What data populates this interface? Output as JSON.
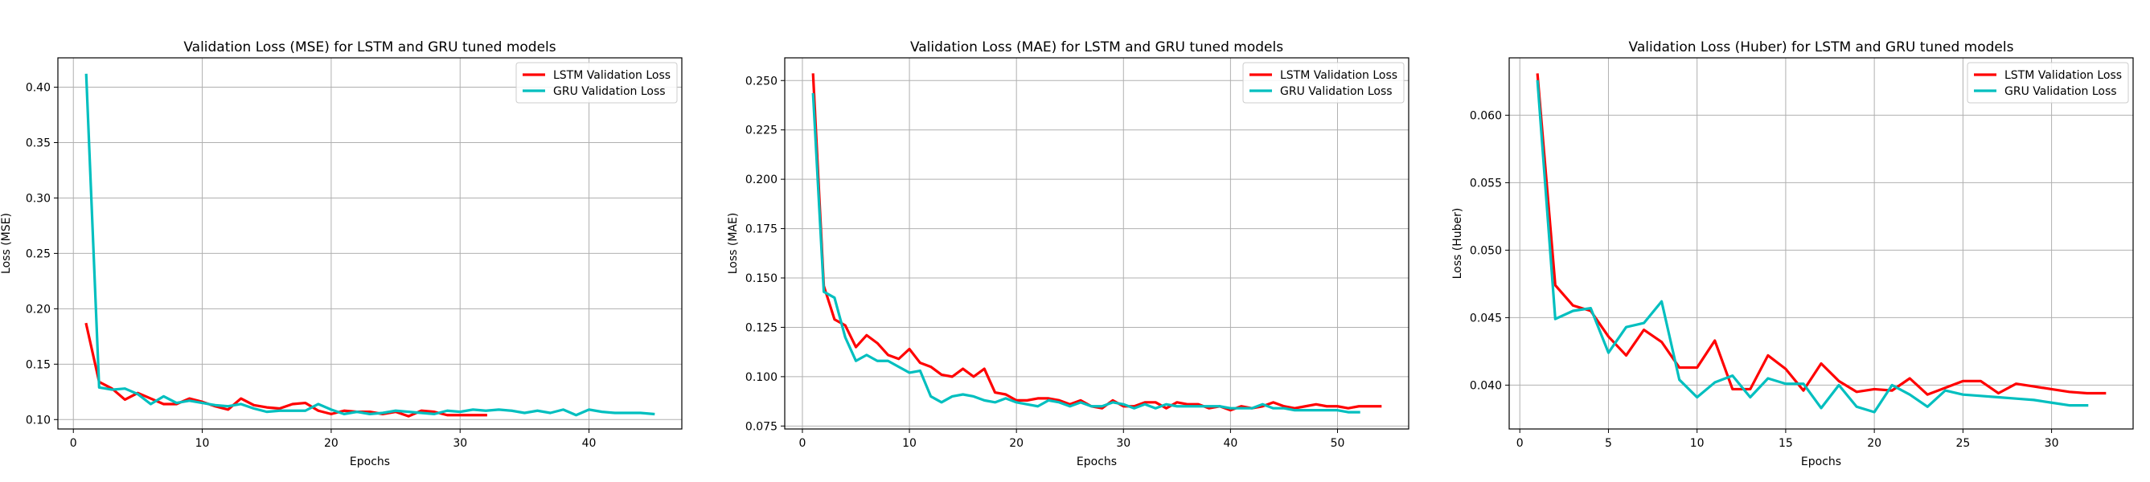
{
  "colors": {
    "lstm": "#ff0000",
    "gru": "#00bfbf",
    "grid": "#b0b0b0",
    "frame": "#000000"
  },
  "chart_data": [
    {
      "type": "line",
      "title": "Validation Loss (MSE) for LSTM and GRU tuned models",
      "xlabel": "Epochs",
      "ylabel": "Loss (MSE)",
      "xlim": [
        -1.2,
        47.2
      ],
      "ylim": [
        0.0915,
        0.4265
      ],
      "xticks": [
        0,
        10,
        20,
        30,
        40
      ],
      "xtick_labels": [
        "0",
        "10",
        "20",
        "30",
        "40"
      ],
      "yticks": [
        0.1,
        0.15,
        0.2,
        0.25,
        0.3,
        0.35,
        0.4
      ],
      "ytick_labels": [
        "0.10",
        "0.15",
        "0.20",
        "0.25",
        "0.30",
        "0.35",
        "0.40"
      ],
      "grid": true,
      "legend_position": "top-right",
      "series": [
        {
          "name": "LSTM Validation Loss",
          "color": "#ff0000",
          "x": [
            1,
            2,
            3,
            4,
            5,
            6,
            7,
            8,
            9,
            10,
            11,
            12,
            13,
            14,
            15,
            16,
            17,
            18,
            19,
            20,
            21,
            22,
            23,
            24,
            25,
            26,
            27,
            28,
            29,
            30,
            31,
            32
          ],
          "y": [
            0.186,
            0.134,
            0.128,
            0.118,
            0.124,
            0.119,
            0.114,
            0.114,
            0.119,
            0.116,
            0.112,
            0.109,
            0.119,
            0.113,
            0.111,
            0.11,
            0.114,
            0.115,
            0.108,
            0.105,
            0.108,
            0.107,
            0.107,
            0.105,
            0.107,
            0.103,
            0.108,
            0.107,
            0.104,
            0.104,
            0.104,
            0.104
          ]
        },
        {
          "name": "GRU Validation Loss",
          "color": "#00bfbf",
          "x": [
            1,
            2,
            3,
            4,
            5,
            6,
            7,
            8,
            9,
            10,
            11,
            12,
            13,
            14,
            15,
            16,
            17,
            18,
            19,
            20,
            21,
            22,
            23,
            24,
            25,
            26,
            27,
            28,
            29,
            30,
            31,
            32,
            33,
            34,
            35,
            36,
            37,
            38,
            39,
            40,
            41,
            42,
            43,
            44,
            45
          ],
          "y": [
            0.411,
            0.129,
            0.127,
            0.128,
            0.123,
            0.114,
            0.121,
            0.115,
            0.117,
            0.115,
            0.113,
            0.112,
            0.114,
            0.11,
            0.107,
            0.108,
            0.108,
            0.108,
            0.114,
            0.109,
            0.105,
            0.107,
            0.105,
            0.106,
            0.108,
            0.107,
            0.106,
            0.105,
            0.108,
            0.107,
            0.109,
            0.108,
            0.109,
            0.108,
            0.106,
            0.108,
            0.106,
            0.109,
            0.104,
            0.109,
            0.107,
            0.106,
            0.106,
            0.106,
            0.105
          ]
        }
      ]
    },
    {
      "type": "line",
      "title": "Validation Loss (MAE) for LSTM and GRU tuned models",
      "xlabel": "Epochs",
      "ylabel": "Loss (MAE)",
      "xlim": [
        -1.65,
        56.65
      ],
      "ylim": [
        0.0735,
        0.2615
      ],
      "xticks": [
        0,
        10,
        20,
        30,
        40,
        50
      ],
      "xtick_labels": [
        "0",
        "10",
        "20",
        "30",
        "40",
        "50"
      ],
      "yticks": [
        0.075,
        0.1,
        0.125,
        0.15,
        0.175,
        0.2,
        0.225,
        0.25
      ],
      "ytick_labels": [
        "0.075",
        "0.100",
        "0.125",
        "0.150",
        "0.175",
        "0.200",
        "0.225",
        "0.250"
      ],
      "grid": true,
      "legend_position": "top-right",
      "series": [
        {
          "name": "LSTM Validation Loss",
          "color": "#ff0000",
          "x": [
            1,
            2,
            3,
            4,
            5,
            6,
            7,
            8,
            9,
            10,
            11,
            12,
            13,
            14,
            15,
            16,
            17,
            18,
            19,
            20,
            21,
            22,
            23,
            24,
            25,
            26,
            27,
            28,
            29,
            30,
            31,
            32,
            33,
            34,
            35,
            36,
            37,
            38,
            39,
            40,
            41,
            42,
            43,
            44,
            45,
            46,
            47,
            48,
            49,
            50,
            51,
            52,
            53,
            54
          ],
          "y": [
            0.253,
            0.146,
            0.129,
            0.126,
            0.115,
            0.121,
            0.117,
            0.111,
            0.109,
            0.114,
            0.107,
            0.105,
            0.101,
            0.1,
            0.104,
            0.1,
            0.104,
            0.092,
            0.091,
            0.088,
            0.088,
            0.089,
            0.089,
            0.088,
            0.086,
            0.088,
            0.085,
            0.084,
            0.088,
            0.085,
            0.085,
            0.087,
            0.087,
            0.084,
            0.087,
            0.086,
            0.086,
            0.084,
            0.085,
            0.083,
            0.085,
            0.084,
            0.085,
            0.087,
            0.085,
            0.084,
            0.085,
            0.086,
            0.085,
            0.085,
            0.084,
            0.085,
            0.085,
            0.085
          ]
        },
        {
          "name": "GRU Validation Loss",
          "color": "#00bfbf",
          "x": [
            1,
            2,
            3,
            4,
            5,
            6,
            7,
            8,
            9,
            10,
            11,
            12,
            13,
            14,
            15,
            16,
            17,
            18,
            19,
            20,
            21,
            22,
            23,
            24,
            25,
            26,
            27,
            28,
            29,
            30,
            31,
            32,
            33,
            34,
            35,
            36,
            37,
            38,
            39,
            40,
            41,
            42,
            43,
            44,
            45,
            46,
            47,
            48,
            49,
            50,
            51,
            52
          ],
          "y": [
            0.243,
            0.143,
            0.14,
            0.12,
            0.108,
            0.111,
            0.108,
            0.108,
            0.105,
            0.102,
            0.103,
            0.09,
            0.087,
            0.09,
            0.091,
            0.09,
            0.088,
            0.087,
            0.089,
            0.087,
            0.086,
            0.085,
            0.088,
            0.087,
            0.085,
            0.087,
            0.085,
            0.085,
            0.087,
            0.086,
            0.084,
            0.086,
            0.084,
            0.086,
            0.085,
            0.085,
            0.085,
            0.085,
            0.085,
            0.084,
            0.084,
            0.084,
            0.086,
            0.084,
            0.084,
            0.083,
            0.083,
            0.083,
            0.083,
            0.083,
            0.082,
            0.082
          ]
        }
      ]
    },
    {
      "type": "line",
      "title": "Validation Loss (Huber) for LSTM and GRU tuned models",
      "xlabel": "Epochs",
      "ylabel": "Loss (Huber)",
      "xlim": [
        -0.6,
        34.6
      ],
      "ylim": [
        0.03675,
        0.06425
      ],
      "xticks": [
        0,
        5,
        10,
        15,
        20,
        25,
        30
      ],
      "xtick_labels": [
        "0",
        "5",
        "10",
        "15",
        "20",
        "25",
        "30"
      ],
      "yticks": [
        0.04,
        0.045,
        0.05,
        0.055,
        0.06
      ],
      "ytick_labels": [
        "0.040",
        "0.045",
        "0.050",
        "0.055",
        "0.060"
      ],
      "grid": true,
      "legend_position": "top-right",
      "series": [
        {
          "name": "LSTM Validation Loss",
          "color": "#ff0000",
          "x": [
            1,
            2,
            3,
            4,
            5,
            6,
            7,
            8,
            9,
            10,
            11,
            12,
            13,
            14,
            15,
            16,
            17,
            18,
            19,
            20,
            21,
            22,
            23,
            24,
            25,
            26,
            27,
            28,
            29,
            30,
            31,
            32,
            33
          ],
          "y": [
            0.063,
            0.0474,
            0.0459,
            0.0455,
            0.0436,
            0.0422,
            0.0441,
            0.0432,
            0.0413,
            0.0413,
            0.0433,
            0.0397,
            0.0397,
            0.0422,
            0.0412,
            0.0396,
            0.0416,
            0.0403,
            0.0395,
            0.0397,
            0.0396,
            0.0405,
            0.0393,
            0.0398,
            0.0403,
            0.0403,
            0.0394,
            0.0401,
            0.0399,
            0.0397,
            0.0395,
            0.0394,
            0.0394
          ]
        },
        {
          "name": "GRU Validation Loss",
          "color": "#00bfbf",
          "x": [
            1,
            2,
            3,
            4,
            5,
            6,
            7,
            8,
            9,
            10,
            11,
            12,
            13,
            14,
            15,
            16,
            17,
            18,
            19,
            20,
            21,
            22,
            23,
            24,
            25,
            26,
            27,
            28,
            29,
            30,
            31,
            32
          ],
          "y": [
            0.0625,
            0.0449,
            0.0455,
            0.0457,
            0.0424,
            0.0443,
            0.0446,
            0.0462,
            0.0404,
            0.0391,
            0.0402,
            0.0407,
            0.0391,
            0.0405,
            0.0401,
            0.0401,
            0.0383,
            0.04,
            0.0384,
            0.038,
            0.04,
            0.0393,
            0.0384,
            0.0396,
            0.0393,
            0.0392,
            0.0391,
            0.039,
            0.0389,
            0.0387,
            0.0385,
            0.0385
          ]
        }
      ]
    }
  ]
}
